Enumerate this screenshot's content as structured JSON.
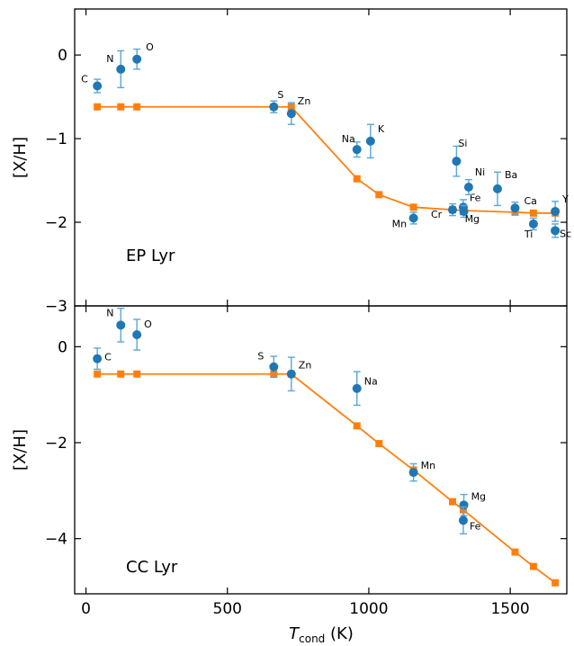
{
  "chart_data": [
    {
      "type": "scatter",
      "panel": "top",
      "title": "",
      "annotation": "EP Lyr",
      "xlabel": "",
      "ylabel": "[X/H]",
      "xlim": [
        -40,
        1700
      ],
      "ylim": [
        -3,
        0.55
      ],
      "yticks": [
        0,
        -1,
        -2,
        -3
      ],
      "ytick_labels": [
        "0",
        "−1",
        "−2",
        "−3"
      ],
      "series": [
        {
          "kind": "observed",
          "color": "#1f77b4",
          "points": [
            {
              "label": "C",
              "x": 40,
              "y": -0.37,
              "err": 0.08
            },
            {
              "label": "N",
              "x": 123,
              "y": -0.17,
              "err": 0.22
            },
            {
              "label": "O",
              "x": 180,
              "y": -0.05,
              "err": 0.12
            },
            {
              "label": "S",
              "x": 664,
              "y": -0.62,
              "err": 0.07
            },
            {
              "label": "Zn",
              "x": 726,
              "y": -0.7,
              "err": 0.13
            },
            {
              "label": "Na",
              "x": 958,
              "y": -1.13,
              "err": 0.09
            },
            {
              "label": "K",
              "x": 1006,
              "y": -1.03,
              "err": 0.2
            },
            {
              "label": "Mn",
              "x": 1158,
              "y": -1.95,
              "err": 0.07
            },
            {
              "label": "Cr",
              "x": 1296,
              "y": -1.85,
              "err": 0.07
            },
            {
              "label": "Si",
              "x": 1310,
              "y": -1.27,
              "err": 0.18
            },
            {
              "label": "Fe",
              "x": 1334,
              "y": -1.82,
              "err": 0.09
            },
            {
              "label": "Mg",
              "x": 1336,
              "y": -1.87,
              "err": 0.07
            },
            {
              "label": "Ni",
              "x": 1353,
              "y": -1.58,
              "err": 0.09
            },
            {
              "label": "Ba",
              "x": 1455,
              "y": -1.6,
              "err": 0.2
            },
            {
              "label": "Ca",
              "x": 1517,
              "y": -1.83,
              "err": 0.07
            },
            {
              "label": "Ti",
              "x": 1582,
              "y": -2.02,
              "err": 0.07
            },
            {
              "label": "Y",
              "x": 1659,
              "y": -1.87,
              "err": 0.12
            },
            {
              "label": "Sc",
              "x": 1659,
              "y": -2.1,
              "err": 0.08
            }
          ]
        },
        {
          "kind": "model",
          "color": "#ff7f0e",
          "points": [
            {
              "x": 40,
              "y": -0.62
            },
            {
              "x": 123,
              "y": -0.62
            },
            {
              "x": 180,
              "y": -0.62
            },
            {
              "x": 664,
              "y": -0.62
            },
            {
              "x": 726,
              "y": -0.62
            },
            {
              "x": 958,
              "y": -1.48
            },
            {
              "x": 1036,
              "y": -1.67
            },
            {
              "x": 1158,
              "y": -1.82
            },
            {
              "x": 1296,
              "y": -1.85
            },
            {
              "x": 1334,
              "y": -1.86
            },
            {
              "x": 1517,
              "y": -1.88
            },
            {
              "x": 1582,
              "y": -1.89
            },
            {
              "x": 1659,
              "y": -1.89
            }
          ]
        }
      ]
    },
    {
      "type": "scatter",
      "panel": "bottom",
      "title": "",
      "annotation": "CC Lyr",
      "xlabel": "T_cond (K)",
      "ylabel": "[X/H]",
      "xlim": [
        -40,
        1700
      ],
      "ylim": [
        -5.15,
        0.85
      ],
      "xticks": [
        0,
        500,
        1000,
        1500
      ],
      "xtick_labels": [
        "0",
        "500",
        "1000",
        "1500"
      ],
      "yticks": [
        0,
        -2,
        -4
      ],
      "ytick_labels": [
        "0",
        "−2",
        "−4"
      ],
      "series": [
        {
          "kind": "observed",
          "color": "#1f77b4",
          "points": [
            {
              "label": "C",
              "x": 40,
              "y": -0.25,
              "err": 0.22
            },
            {
              "label": "N",
              "x": 123,
              "y": 0.45,
              "err": 0.35
            },
            {
              "label": "O",
              "x": 180,
              "y": 0.25,
              "err": 0.32
            },
            {
              "label": "S",
              "x": 664,
              "y": -0.42,
              "err": 0.22
            },
            {
              "label": "Zn",
              "x": 726,
              "y": -0.57,
              "err": 0.35
            },
            {
              "label": "Na",
              "x": 958,
              "y": -0.87,
              "err": 0.35
            },
            {
              "label": "Mn",
              "x": 1158,
              "y": -2.62,
              "err": 0.18
            },
            {
              "label": "Mg",
              "x": 1336,
              "y": -3.3,
              "err": 0.22
            },
            {
              "label": "Fe",
              "x": 1334,
              "y": -3.62,
              "err": 0.28
            }
          ]
        },
        {
          "kind": "model",
          "color": "#ff7f0e",
          "points": [
            {
              "x": 40,
              "y": -0.57
            },
            {
              "x": 123,
              "y": -0.57
            },
            {
              "x": 180,
              "y": -0.57
            },
            {
              "x": 664,
              "y": -0.57
            },
            {
              "x": 726,
              "y": -0.57
            },
            {
              "x": 958,
              "y": -1.65
            },
            {
              "x": 1036,
              "y": -2.02
            },
            {
              "x": 1158,
              "y": -2.57
            },
            {
              "x": 1296,
              "y": -3.23
            },
            {
              "x": 1334,
              "y": -3.4
            },
            {
              "x": 1517,
              "y": -4.28
            },
            {
              "x": 1582,
              "y": -4.58
            },
            {
              "x": 1659,
              "y": -4.92
            }
          ]
        }
      ]
    }
  ]
}
